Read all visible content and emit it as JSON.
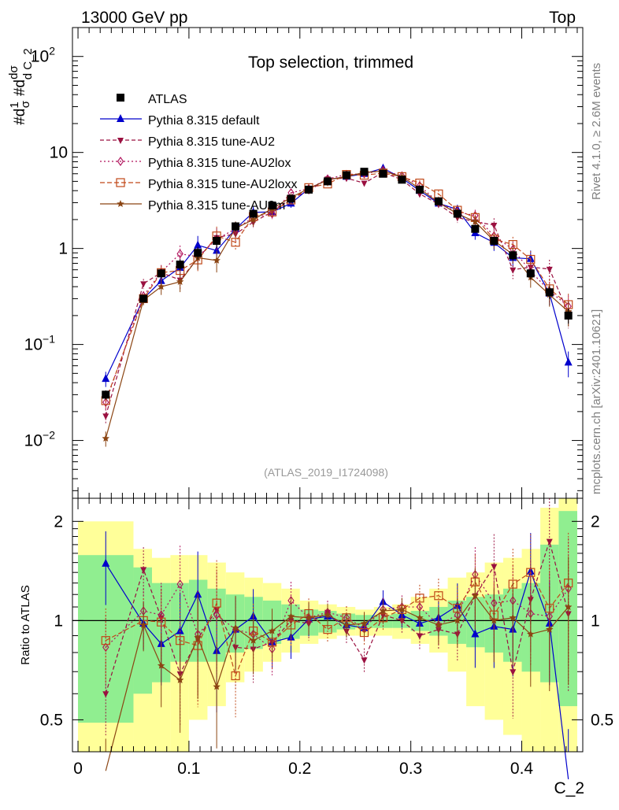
{
  "header": {
    "left": "13000 GeV pp",
    "right": "Top"
  },
  "side_text": {
    "rivet": "Rivet 4.1.0, ≥ 2.6M events",
    "mcplots": "mcplots.cern.ch [arXiv:2401.10621]"
  },
  "chart_data": [
    {
      "type": "line",
      "title": "Top selection, trimmed",
      "watermark": "(ATLAS_2019_I1724098)",
      "ylabel": "#d1/σ #d dσ/d C_2",
      "yscale": "log",
      "ylim": [
        0.0025,
        200
      ],
      "xlim": [
        -0.005,
        0.455
      ],
      "y_ticks": [
        {
          "value": 0.01,
          "label_base": "10",
          "label_exp": "−2"
        },
        {
          "value": 0.1,
          "label_base": "10",
          "label_exp": "−1"
        },
        {
          "value": 1,
          "label_base": "1",
          "label_exp": ""
        },
        {
          "value": 10,
          "label_base": "10",
          "label_exp": ""
        },
        {
          "value": 100,
          "label_base": "10",
          "label_exp": "2"
        }
      ],
      "x": [
        0.025,
        0.059,
        0.075,
        0.092,
        0.108,
        0.125,
        0.142,
        0.158,
        0.175,
        0.192,
        0.208,
        0.225,
        0.242,
        0.258,
        0.275,
        0.292,
        0.308,
        0.325,
        0.342,
        0.358,
        0.375,
        0.392,
        0.408,
        0.425,
        0.442
      ],
      "series": [
        {
          "name": "ATLAS",
          "color": "#000000",
          "marker": "square",
          "dash": "",
          "values": [
            0.03,
            0.3,
            0.55,
            0.68,
            0.9,
            1.2,
            1.7,
            2.3,
            2.8,
            3.3,
            4.1,
            5.0,
            5.8,
            6.3,
            6.0,
            5.2,
            4.1,
            3.1,
            2.3,
            1.6,
            1.2,
            0.85,
            0.55,
            0.35,
            0.2
          ]
        },
        {
          "name": "Pythia 8.315 default",
          "color": "#0000cc",
          "marker": "triangle",
          "dash": "",
          "values": [
            0.044,
            0.3,
            0.46,
            0.63,
            1.08,
            0.95,
            1.6,
            2.38,
            2.4,
            2.95,
            4.2,
            5.2,
            5.6,
            6.0,
            6.85,
            5.4,
            4.0,
            2.95,
            2.55,
            1.45,
            1.15,
            0.8,
            0.78,
            0.34,
            0.065
          ]
        },
        {
          "name": "Pythia 8.315 tune-AU2",
          "color": "#9a1040",
          "marker": "invtriangle",
          "dash": "5,3",
          "values": [
            0.018,
            0.43,
            0.56,
            0.47,
            0.79,
            1.3,
            1.42,
            1.88,
            2.4,
            3.3,
            4.0,
            5.3,
            5.4,
            4.8,
            6.2,
            5.2,
            3.7,
            2.9,
            2.1,
            1.9,
            1.75,
            0.6,
            0.64,
            0.61,
            0.21
          ]
        },
        {
          "name": "Pythia 8.315 tune-AU2lox",
          "color": "#b0105a",
          "marker": "diamond",
          "dash": "2,3",
          "values": [
            0.025,
            0.32,
            0.57,
            0.88,
            0.82,
            1.25,
            1.6,
            2.1,
            2.3,
            3.8,
            4.2,
            5.3,
            5.9,
            6.0,
            6.5,
            5.7,
            4.5,
            3.0,
            2.4,
            2.2,
            1.35,
            0.98,
            0.58,
            0.36,
            0.25
          ]
        },
        {
          "name": "Pythia 8.315 tune-AU2loxx",
          "color": "#c04818",
          "marker": "opensquare",
          "dash": "6,3",
          "values": [
            0.026,
            0.3,
            0.56,
            0.59,
            0.76,
            1.35,
            1.16,
            2.15,
            2.4,
            3.2,
            4.3,
            4.7,
            5.9,
            5.8,
            6.1,
            5.6,
            4.8,
            3.7,
            2.5,
            2.1,
            1.25,
            1.1,
            0.77,
            0.38,
            0.26
          ]
        },
        {
          "name": "Pythia 8.315 tune-AU2m",
          "color": "#8b4513",
          "marker": "star",
          "dash": "",
          "values": [
            0.0105,
            0.29,
            0.4,
            0.45,
            0.8,
            0.75,
            1.62,
            2.0,
            2.6,
            3.4,
            4.2,
            5.2,
            5.6,
            6.2,
            6.4,
            5.6,
            4.2,
            3.0,
            2.3,
            1.9,
            1.2,
            0.87,
            0.5,
            0.33,
            0.22
          ]
        }
      ],
      "error_frac": [
        0.18,
        0.12,
        0.18,
        0.22,
        0.25,
        0.25,
        0.18,
        0.15,
        0.12,
        0.1,
        0.08,
        0.06,
        0.06,
        0.06,
        0.06,
        0.06,
        0.07,
        0.09,
        0.12,
        0.15,
        0.18,
        0.2,
        0.22,
        0.25,
        0.3
      ]
    },
    {
      "type": "line",
      "ylabel": "Ratio to ATLAS",
      "xlabel": "C_2",
      "yscale": "log",
      "ylim": [
        0.4,
        2.35
      ],
      "y_ticks": [
        {
          "value": 0.5,
          "label": "0.5"
        },
        {
          "value": 1,
          "label": "1"
        },
        {
          "value": 2,
          "label": "2"
        }
      ],
      "x_ticks": [
        {
          "value": 0,
          "label": "0"
        },
        {
          "value": 0.1,
          "label": "0.1"
        },
        {
          "value": 0.2,
          "label": "0.2"
        },
        {
          "value": 0.3,
          "label": "0.3"
        },
        {
          "value": 0.4,
          "label": "0.4"
        }
      ],
      "bins": [
        0.0,
        0.05,
        0.0667,
        0.0833,
        0.1,
        0.1167,
        0.1333,
        0.15,
        0.1667,
        0.1833,
        0.2,
        0.2167,
        0.2333,
        0.25,
        0.2667,
        0.2833,
        0.3,
        0.3167,
        0.3333,
        0.35,
        0.3667,
        0.3833,
        0.4,
        0.4167,
        0.4333,
        0.45
      ],
      "band_stat": [
        [
          0.49,
          1.58
        ],
        [
          0.6,
          1.45
        ],
        [
          0.65,
          1.3
        ],
        [
          0.75,
          1.3
        ],
        [
          0.75,
          1.33
        ],
        [
          0.75,
          1.25
        ],
        [
          0.8,
          1.2
        ],
        [
          0.82,
          1.18
        ],
        [
          0.85,
          1.15
        ],
        [
          0.88,
          1.12
        ],
        [
          0.9,
          1.08
        ],
        [
          0.92,
          1.07
        ],
        [
          0.94,
          1.05
        ],
        [
          0.95,
          1.04
        ],
        [
          0.95,
          1.04
        ],
        [
          0.95,
          1.05
        ],
        [
          0.93,
          1.07
        ],
        [
          0.9,
          1.1
        ],
        [
          0.85,
          1.15
        ],
        [
          0.83,
          1.18
        ],
        [
          0.8,
          1.2
        ],
        [
          0.75,
          1.25
        ],
        [
          0.7,
          1.3
        ],
        [
          0.65,
          1.7
        ],
        [
          0.55,
          2.15
        ]
      ],
      "band_total": [
        [
          0.3,
          2.0
        ],
        [
          0.3,
          1.65
        ],
        [
          0.35,
          1.55
        ],
        [
          0.38,
          1.58
        ],
        [
          0.5,
          1.58
        ],
        [
          0.55,
          1.5
        ],
        [
          0.65,
          1.4
        ],
        [
          0.7,
          1.35
        ],
        [
          0.75,
          1.3
        ],
        [
          0.8,
          1.25
        ],
        [
          0.85,
          1.15
        ],
        [
          0.88,
          1.12
        ],
        [
          0.9,
          1.1
        ],
        [
          0.9,
          1.08
        ],
        [
          0.9,
          1.1
        ],
        [
          0.88,
          1.12
        ],
        [
          0.85,
          1.18
        ],
        [
          0.8,
          1.25
        ],
        [
          0.7,
          1.35
        ],
        [
          0.55,
          1.4
        ],
        [
          0.5,
          1.5
        ],
        [
          0.45,
          1.55
        ],
        [
          0.4,
          1.65
        ],
        [
          0.35,
          2.2
        ],
        [
          0.3,
          2.4
        ]
      ],
      "ratio_series": [
        {
          "name": "Pythia 8.315 default",
          "color": "#0000cc",
          "marker": "triangle",
          "dash": "",
          "values": [
            1.49,
            0.98,
            0.85,
            0.93,
            1.2,
            0.81,
            0.94,
            1.03,
            0.86,
            0.89,
            1.01,
            1.03,
            0.97,
            0.95,
            1.14,
            1.04,
            0.98,
            1.02,
            1.11,
            0.91,
            0.96,
            0.94,
            1.41,
            0.98,
            0.33
          ]
        },
        {
          "name": "Pythia 8.315 tune-AU2",
          "color": "#9a1040",
          "marker": "invtriangle",
          "dash": "5,3",
          "values": [
            0.6,
            1.43,
            1.02,
            0.69,
            0.88,
            1.08,
            0.83,
            0.82,
            0.86,
            1.0,
            0.98,
            1.06,
            0.93,
            0.76,
            1.04,
            1.0,
            0.9,
            0.94,
            0.91,
            1.19,
            1.46,
            0.7,
            1.16,
            1.74,
            1.05
          ]
        },
        {
          "name": "Pythia 8.315 tune-AU2lox",
          "color": "#b0105a",
          "marker": "diamond",
          "dash": "2,3",
          "values": [
            0.83,
            1.07,
            1.04,
            1.29,
            0.91,
            1.04,
            0.94,
            0.91,
            0.82,
            1.15,
            1.02,
            1.06,
            1.02,
            0.95,
            1.08,
            1.1,
            1.1,
            0.97,
            1.04,
            1.38,
            1.13,
            1.15,
            1.05,
            1.03,
            1.25
          ]
        },
        {
          "name": "Pythia 8.315 tune-AU2loxx",
          "color": "#c04818",
          "marker": "opensquare",
          "dash": "6,3",
          "values": [
            0.87,
            1.0,
            0.99,
            0.87,
            0.84,
            1.13,
            0.68,
            0.93,
            0.86,
            0.97,
            1.05,
            0.94,
            1.02,
            0.92,
            1.02,
            1.08,
            1.17,
            1.19,
            1.09,
            1.31,
            1.04,
            1.29,
            1.4,
            1.09,
            1.3
          ]
        },
        {
          "name": "Pythia 8.315 tune-AU2m",
          "color": "#8b4513",
          "marker": "star",
          "dash": "",
          "values": [
            0.35,
            0.97,
            0.73,
            0.66,
            0.89,
            0.63,
            0.95,
            0.87,
            0.93,
            1.03,
            1.02,
            1.04,
            0.97,
            0.98,
            1.07,
            1.08,
            1.02,
            0.97,
            1.0,
            1.19,
            1.0,
            1.02,
            0.91,
            0.94,
            1.1
          ]
        }
      ]
    }
  ]
}
